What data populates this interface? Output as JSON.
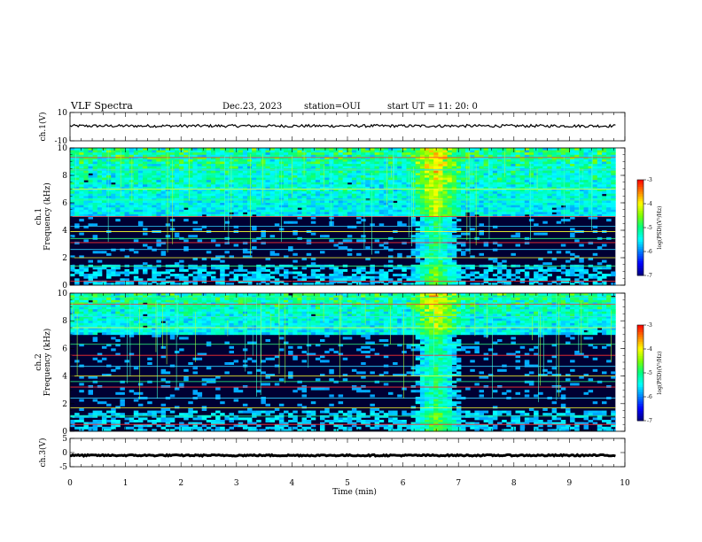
{
  "header": {
    "title": "VLF Spectra",
    "date": "Dec.23, 2023",
    "station": "station=OUI",
    "start": "start  UT =   11: 20: 0"
  },
  "colors": {
    "background": "#000033",
    "spectrogram_scale": [
      "#000080",
      "#0000ff",
      "#0080ff",
      "#00ffff",
      "#00ff80",
      "#80ff00",
      "#ffff00",
      "#ff8000",
      "#ff0000",
      "#ffffff"
    ]
  },
  "chart_data": [
    {
      "type": "line",
      "name": "ch1-waveform",
      "ylabel": "ch.1(V)",
      "yticks": [
        "10",
        "-10"
      ],
      "ylim": [
        -10,
        10
      ],
      "xlim": [
        0,
        10
      ],
      "x_extent_min": 9.83,
      "mean_value": 0.5,
      "amplitude": 1.0
    },
    {
      "type": "heatmap",
      "name": "ch1-spectrogram",
      "ylabel": "ch.1\nFrequency (kHz)",
      "yticks": [
        "0",
        "2",
        "4",
        "6",
        "8",
        "10"
      ],
      "ylim": [
        0,
        10
      ],
      "xlim": [
        0,
        10
      ],
      "x_extent_min": 9.83,
      "colorbar": {
        "label": "log(PSD)(V²/Hz)",
        "ticks": [
          "-3",
          "-4",
          "-5",
          "-6",
          "-7"
        ],
        "range": [
          -7,
          -3
        ]
      },
      "features": {
        "strong_lines_khz": [
          0.3,
          1.4,
          2.0,
          2.6,
          3.1,
          3.4,
          3.9,
          4.3,
          5.0,
          6.2,
          7.0,
          8.4,
          9.3
        ],
        "broadband_events_min": [
          6.6
        ],
        "hiss_band_khz": [
          5.0,
          10.0
        ]
      }
    },
    {
      "type": "heatmap",
      "name": "ch2-spectrogram",
      "ylabel": "ch.2\nFrequency (kHz)",
      "yticks": [
        "0",
        "2",
        "4",
        "6",
        "8",
        "10"
      ],
      "ylim": [
        0,
        10
      ],
      "xlim": [
        0,
        10
      ],
      "x_extent_min": 9.83,
      "colorbar": {
        "label": "log(PSD)(V²/Hz)",
        "ticks": [
          "-3",
          "-4",
          "-5",
          "-6",
          "-7"
        ],
        "range": [
          -7,
          -3
        ]
      },
      "features": {
        "strong_lines_khz": [
          0.5,
          1.1,
          1.7,
          2.4,
          3.2,
          3.6,
          4.0,
          4.7,
          5.5,
          6.3,
          7.5,
          8.3,
          9.2,
          9.7
        ],
        "broadband_events_min": [
          6.6
        ],
        "hiss_band_khz": [
          7.0,
          10.0
        ]
      }
    },
    {
      "type": "line",
      "name": "ch3-waveform",
      "ylabel": "ch.3(V)",
      "yticks": [
        "5",
        "0",
        "-5"
      ],
      "ylim": [
        -5,
        5
      ],
      "xlim": [
        0,
        10
      ],
      "x_extent_min": 9.83,
      "mean_value": -1.0,
      "amplitude": 0.25
    }
  ],
  "xaxis": {
    "label": "Time (min)",
    "ticks": [
      "0",
      "1",
      "2",
      "3",
      "4",
      "5",
      "6",
      "7",
      "8",
      "9",
      "10"
    ]
  }
}
